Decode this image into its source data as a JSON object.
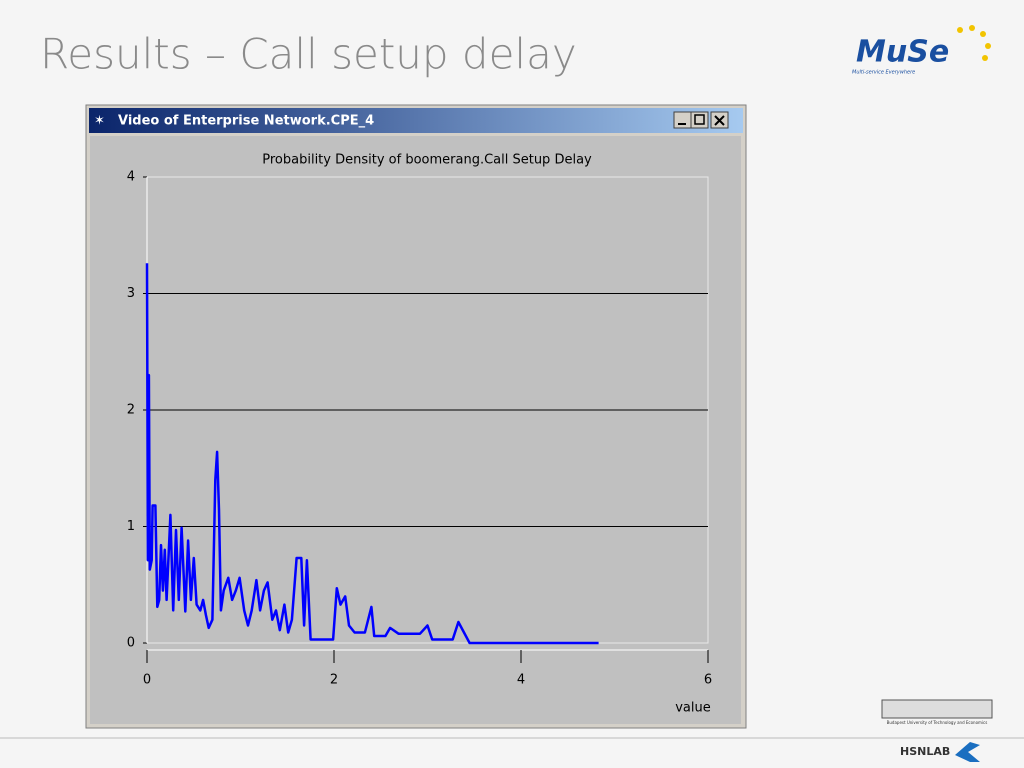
{
  "slide": {
    "title": "Results – Call setup delay"
  },
  "window": {
    "title": "Video of Enterprise Network.CPE_4"
  },
  "logo": {
    "name": "MuSe",
    "tagline": "Multi-service Everywhere"
  },
  "footer": {
    "university": "Budapest University of Technology and Economics",
    "lab": "HSNLAB"
  },
  "chart_data": {
    "type": "line",
    "title": "Probability Density of boomerang.Call Setup Delay",
    "xlabel": "value",
    "color": "#0000ff",
    "grid": true,
    "xlim": [
      0,
      6
    ],
    "xticks": [
      0,
      2,
      4,
      6
    ],
    "ylim": [
      0,
      4
    ],
    "yticks": [
      0,
      1,
      2,
      3,
      4
    ],
    "x": [
      0,
      0.01,
      0.02,
      0.03,
      0.05,
      0.06,
      0.09,
      0.11,
      0.13,
      0.15,
      0.17,
      0.19,
      0.21,
      0.25,
      0.28,
      0.31,
      0.34,
      0.37,
      0.41,
      0.44,
      0.47,
      0.5,
      0.53,
      0.57,
      0.6,
      0.63,
      0.66,
      0.7,
      0.73,
      0.75,
      0.77,
      0.79,
      0.82,
      0.87,
      0.91,
      0.95,
      0.99,
      1.04,
      1.08,
      1.12,
      1.17,
      1.21,
      1.25,
      1.29,
      1.34,
      1.38,
      1.42,
      1.47,
      1.51,
      1.55,
      1.6,
      1.65,
      1.68,
      1.71,
      1.75,
      1.99,
      2.03,
      2.07,
      2.12,
      2.16,
      2.22,
      2.33,
      2.4,
      2.43,
      2.55,
      2.6,
      2.69,
      2.92,
      3,
      3.05,
      3.27,
      3.33,
      3.39,
      3.45,
      4.83
    ],
    "values": [
      3.26,
      0.71,
      2.3,
      0.63,
      0.71,
      1.18,
      1.18,
      0.31,
      0.37,
      0.84,
      0.45,
      0.8,
      0.37,
      1.1,
      0.28,
      0.97,
      0.37,
      0.99,
      0.27,
      0.88,
      0.37,
      0.73,
      0.33,
      0.28,
      0.37,
      0.24,
      0.13,
      0.2,
      1.4,
      1.64,
      1.14,
      0.28,
      0.45,
      0.56,
      0.37,
      0.45,
      0.56,
      0.28,
      0.15,
      0.28,
      0.54,
      0.28,
      0.45,
      0.52,
      0.2,
      0.28,
      0.11,
      0.33,
      0.09,
      0.2,
      0.73,
      0.73,
      0.15,
      0.71,
      0.03,
      0.03,
      0.47,
      0.33,
      0.4,
      0.15,
      0.09,
      0.09,
      0.31,
      0.06,
      0.06,
      0.13,
      0.08,
      0.08,
      0.15,
      0.03,
      0.03,
      0.18,
      0.09,
      0,
      0
    ]
  }
}
